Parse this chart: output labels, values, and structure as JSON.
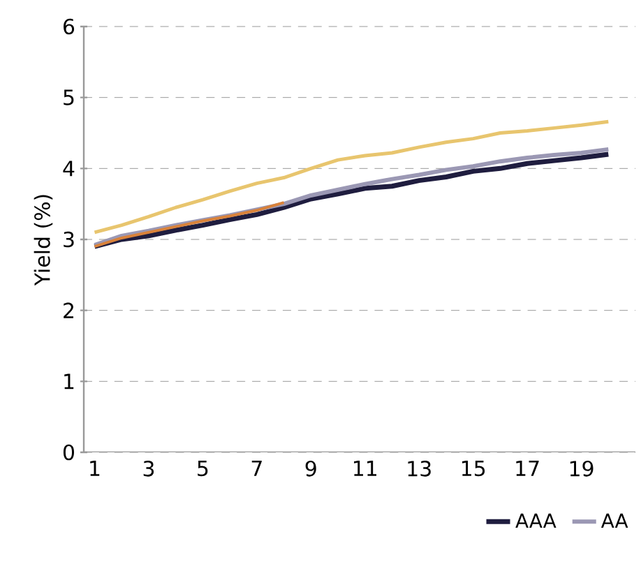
{
  "chart_data": {
    "type": "line",
    "ylabel": "Yield (%)",
    "categories": [
      "1",
      null,
      "3",
      null,
      "5",
      null,
      "7",
      null,
      "9",
      null,
      "11",
      null,
      "13",
      null,
      "15",
      null,
      "17",
      null,
      "19",
      null
    ],
    "series": [
      {
        "name": "AAA",
        "color": "#1f1d3f",
        "values": [
          2.9,
          3.0,
          3.05,
          3.13,
          3.2,
          3.28,
          3.35,
          3.45,
          3.57,
          3.64,
          3.72,
          3.75,
          3.83,
          3.88,
          3.96,
          4.0,
          4.07,
          4.11,
          4.15,
          4.2
        ]
      },
      {
        "name": "AA",
        "color": "#9b98b4",
        "values": [
          2.92,
          3.05,
          3.12,
          3.2,
          3.27,
          3.34,
          3.42,
          3.5,
          3.62,
          3.7,
          3.78,
          3.85,
          3.91,
          3.98,
          4.03,
          4.1,
          4.15,
          4.19,
          4.22,
          4.27
        ]
      },
      {
        "color": "#e8c56e",
        "values": [
          3.1,
          3.2,
          3.32,
          3.45,
          3.56,
          3.68,
          3.79,
          3.87,
          4.0,
          4.12,
          4.18,
          4.22,
          4.3,
          4.37,
          4.42,
          4.5,
          4.53,
          4.57,
          4.61,
          4.66
        ]
      },
      {
        "color": "#d9823a",
        "values": [
          2.9,
          3.02,
          3.1,
          3.18,
          3.26,
          3.33,
          3.41,
          3.52,
          null,
          null,
          null,
          null,
          null,
          null,
          null,
          null,
          null,
          null,
          null,
          null
        ]
      }
    ],
    "ylim": [
      0,
      6
    ],
    "yticks": [
      0,
      1,
      2,
      3,
      4,
      5,
      6
    ],
    "grid": "y",
    "legend": "bottom",
    "line_style": "solid",
    "marker": "none"
  }
}
